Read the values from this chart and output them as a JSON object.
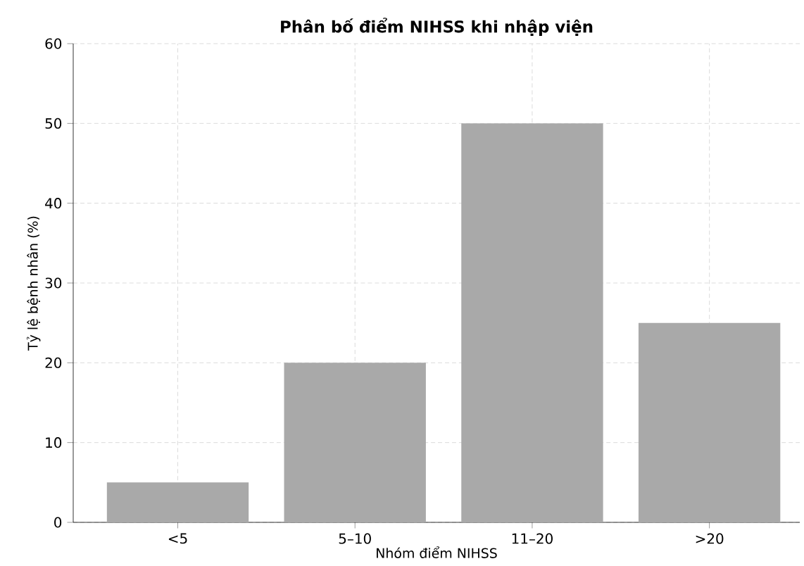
{
  "chart_data": {
    "type": "bar",
    "title": "Phân bố điểm NIHSS khi nhập viện",
    "xlabel": "Nhóm điểm NIHSS",
    "ylabel": "Tỷ lệ bệnh nhân (%)",
    "categories": [
      "<5",
      "5–10",
      "11–20",
      ">20"
    ],
    "values": [
      5,
      20,
      50,
      25
    ],
    "color": "#a9a9a9",
    "ylim": [
      0,
      60
    ],
    "yticks": [
      0,
      10,
      20,
      30,
      40,
      50,
      60
    ],
    "grid": true
  }
}
